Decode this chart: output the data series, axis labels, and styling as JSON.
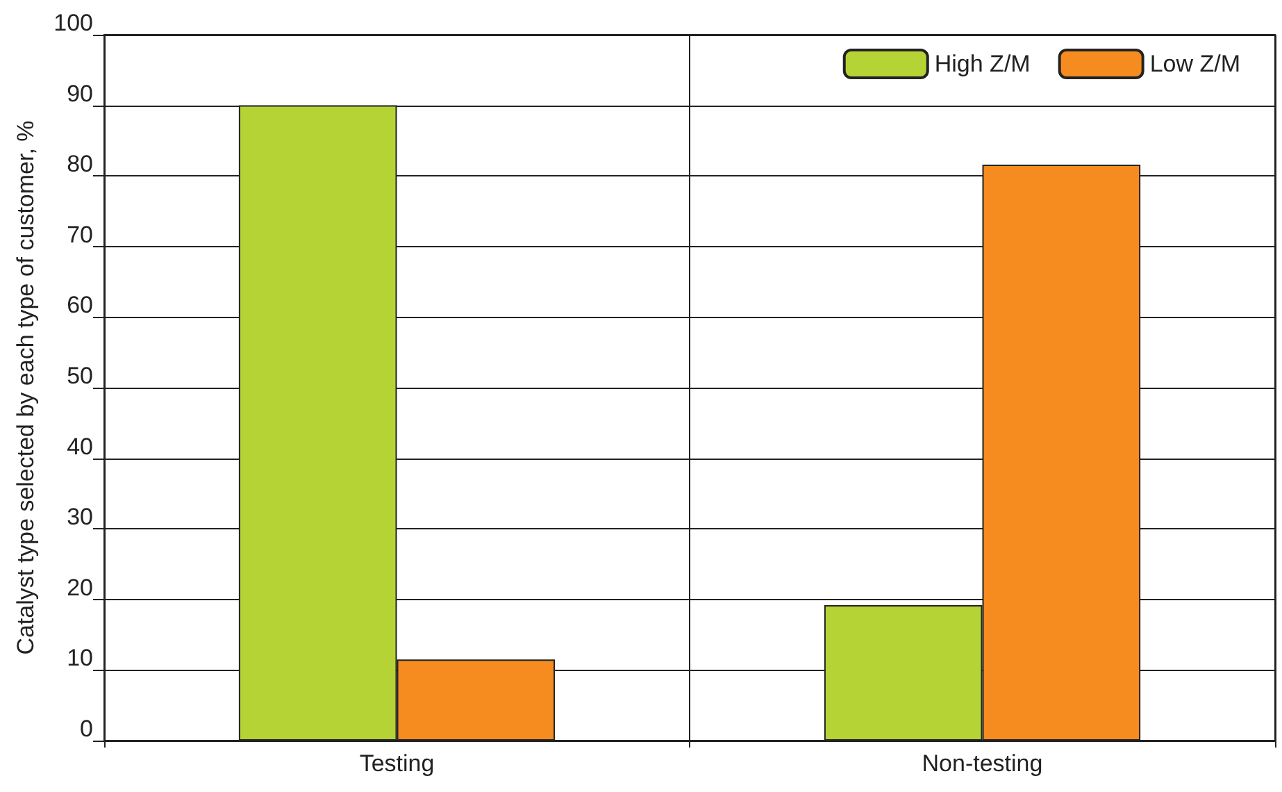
{
  "chart_data": {
    "type": "bar",
    "ylabel": "Catalyst type selected by each type of customer, %",
    "categories": [
      "Testing",
      "Non-testing"
    ],
    "series": [
      {
        "name": "High Z/M",
        "color": "#b5d334",
        "values": [
          90,
          19.2
        ]
      },
      {
        "name": "Low Z/M",
        "color": "#f68b1f",
        "values": [
          11.5,
          81.6
        ]
      }
    ],
    "ylim": [
      0,
      100
    ],
    "yticks": [
      0,
      10,
      20,
      30,
      40,
      50,
      60,
      70,
      80,
      90,
      100
    ],
    "grid": true,
    "legend": "top right"
  }
}
